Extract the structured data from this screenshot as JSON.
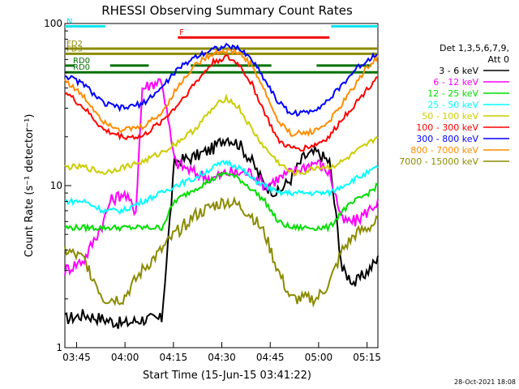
{
  "chart_data": {
    "type": "line",
    "title": "RHESSI Observing Summary Count Rates",
    "xlabel": "Start Time (15-Jun-15 03:41:22)",
    "ylabel": "Count Rate (s⁻¹ detector⁻¹)",
    "yscale": "log",
    "ylim": [
      1,
      100
    ],
    "xlim_minutes": [
      0,
      97
    ],
    "x_tick_labels": [
      "03:45",
      "04:00",
      "04:15",
      "04:30",
      "04:45",
      "05:00",
      "05:15"
    ],
    "x_ticks_minutes": [
      3.63,
      18.63,
      33.63,
      48.63,
      63.63,
      78.63,
      93.63
    ],
    "y_tick_labels": [
      "1",
      "10",
      "100"
    ],
    "y_ticks": [
      1,
      10,
      100
    ],
    "legend_header": [
      "Det 1,3,5,6,7,9,",
      "Att 0"
    ],
    "legend_placement": "right",
    "timestamp": "28-Oct-2021 18:08",
    "flags": [
      {
        "label": "N",
        "color": "#00e5ee",
        "segments": [
          [
            0,
            12.5
          ],
          [
            82.5,
            97
          ]
        ],
        "level": 96
      },
      {
        "label": "F",
        "color": "#ee0000",
        "segments": [
          [
            35,
            82
          ]
        ],
        "level": 82
      },
      {
        "label": "FD2",
        "color": "#8b8b00",
        "segments": [
          [
            0,
            97
          ]
        ],
        "level": 70
      },
      {
        "label": "FD3",
        "color": "#8b8b00",
        "segments": [
          [
            0,
            97
          ]
        ],
        "level": 65
      },
      {
        "label": "RD0",
        "color": "#007000",
        "segments": [
          [
            0,
            3
          ],
          [
            14,
            26
          ],
          [
            39,
            64
          ],
          [
            78,
            95
          ]
        ],
        "level": 55
      },
      {
        "label": "RD0",
        "color": "#007000",
        "segments": [
          [
            0,
            97
          ]
        ],
        "level": 50
      }
    ],
    "series": [
      {
        "name": "3 - 6 keV",
        "color": "#000000",
        "x": [
          0,
          6,
          12,
          18,
          24,
          30,
          34,
          40,
          46,
          50,
          54,
          58,
          62,
          66,
          70,
          74,
          78,
          82,
          86,
          90,
          94,
          97
        ],
        "values": [
          1.5,
          1.6,
          1.5,
          1.4,
          1.5,
          1.5,
          14,
          15,
          17,
          20,
          18,
          14,
          10,
          9,
          11,
          15,
          16,
          14,
          3,
          2.5,
          3,
          3.5
        ]
      },
      {
        "name": "6 - 12 keV",
        "color": "#ff00ff",
        "x": [
          0,
          6,
          12,
          14,
          18,
          22,
          24,
          30,
          34,
          40,
          46,
          50,
          54,
          58,
          62,
          66,
          70,
          74,
          78,
          82,
          86,
          90,
          94,
          97
        ],
        "values": [
          3,
          3.5,
          6,
          8,
          9,
          7,
          40,
          45,
          14,
          12,
          11,
          12,
          12,
          12,
          10,
          11,
          12,
          13,
          14,
          12,
          6,
          6,
          7,
          8
        ]
      },
      {
        "name": "12 - 25 keV",
        "color": "#00dd00",
        "x": [
          0,
          6,
          12,
          18,
          24,
          30,
          34,
          40,
          46,
          50,
          54,
          58,
          62,
          66,
          70,
          74,
          78,
          82,
          86,
          90,
          94,
          97
        ],
        "values": [
          5.5,
          5.5,
          5.5,
          5.5,
          5.5,
          5.5,
          8,
          9.5,
          11,
          12,
          11,
          9.5,
          8,
          6,
          5.5,
          5.5,
          5.5,
          5.5,
          7,
          8,
          9,
          10
        ]
      },
      {
        "name": "25 - 50 keV",
        "color": "#00ffff",
        "x": [
          0,
          6,
          12,
          18,
          24,
          30,
          34,
          40,
          46,
          50,
          54,
          58,
          62,
          66,
          70,
          74,
          78,
          82,
          86,
          90,
          94,
          97
        ],
        "values": [
          8,
          8,
          7,
          7,
          8,
          9,
          10,
          11,
          13,
          14,
          13,
          11,
          10,
          9,
          9,
          9,
          9,
          9,
          10,
          11,
          12,
          13
        ]
      },
      {
        "name": "50 - 100 keV",
        "color": "#cccc00",
        "x": [
          0,
          6,
          12,
          18,
          24,
          30,
          34,
          40,
          46,
          50,
          54,
          58,
          62,
          66,
          70,
          74,
          78,
          82,
          86,
          90,
          94,
          97
        ],
        "values": [
          13,
          13,
          12,
          13,
          14,
          16,
          18,
          22,
          30,
          35,
          30,
          22,
          17,
          14,
          12,
          12,
          13,
          13,
          14,
          16,
          18,
          20
        ]
      },
      {
        "name": "100 - 300 keV",
        "color": "#ff0000",
        "x": [
          0,
          6,
          12,
          18,
          24,
          30,
          34,
          40,
          46,
          50,
          54,
          58,
          62,
          66,
          70,
          74,
          78,
          82,
          86,
          90,
          94,
          97
        ],
        "values": [
          38,
          30,
          22,
          20,
          20,
          25,
          30,
          42,
          58,
          62,
          56,
          42,
          28,
          19,
          17,
          17,
          18,
          20,
          26,
          32,
          40,
          48
        ]
      },
      {
        "name": "300 - 800 keV",
        "color": "#0000ff",
        "x": [
          0,
          6,
          12,
          18,
          24,
          30,
          34,
          40,
          46,
          50,
          54,
          58,
          62,
          66,
          70,
          74,
          78,
          82,
          86,
          90,
          94,
          97
        ],
        "values": [
          48,
          42,
          32,
          30,
          32,
          40,
          50,
          62,
          70,
          72,
          70,
          60,
          45,
          33,
          28,
          28,
          30,
          34,
          42,
          52,
          60,
          66
        ]
      },
      {
        "name": "800 - 7000 keV",
        "color": "#ff8c00",
        "x": [
          0,
          6,
          12,
          18,
          24,
          30,
          34,
          40,
          46,
          50,
          54,
          58,
          62,
          66,
          70,
          74,
          78,
          82,
          86,
          90,
          94,
          97
        ],
        "values": [
          45,
          35,
          25,
          22,
          23,
          28,
          38,
          55,
          66,
          68,
          66,
          55,
          38,
          25,
          21,
          21,
          22,
          25,
          32,
          42,
          55,
          62
        ]
      },
      {
        "name": "7000 - 15000 keV",
        "color": "#8b8b00",
        "x": [
          0,
          6,
          12,
          18,
          24,
          30,
          34,
          40,
          46,
          50,
          54,
          58,
          62,
          66,
          70,
          74,
          78,
          82,
          86,
          90,
          94,
          97
        ],
        "values": [
          4,
          3.5,
          2,
          2,
          3,
          4,
          5,
          6.5,
          7.5,
          8,
          7.5,
          6.5,
          5,
          3,
          2,
          2,
          2,
          2.5,
          4,
          5,
          5.5,
          6
        ]
      }
    ]
  }
}
